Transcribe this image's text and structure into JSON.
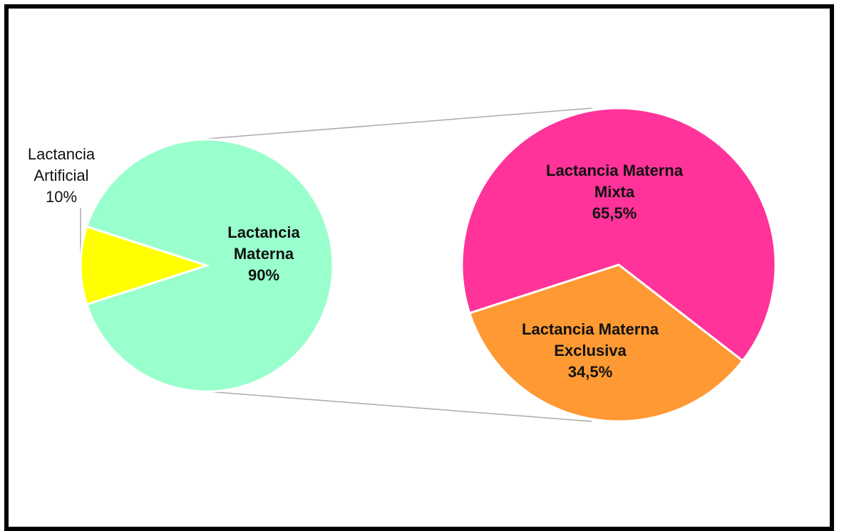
{
  "chart_data": [
    {
      "type": "pie",
      "categories": [
        "Lactancia Materna",
        "Lactancia Artificial"
      ],
      "values": [
        90,
        10
      ],
      "value_labels": [
        "90%",
        "10%"
      ],
      "colors": [
        "#99ffcc",
        "#ffff00"
      ]
    },
    {
      "type": "pie",
      "categories": [
        "Lactancia Materna Mixta",
        "Lactancia Materna Exclusiva"
      ],
      "values": [
        65.5,
        34.5
      ],
      "value_labels": [
        "65,5%",
        "34,5%"
      ],
      "colors": [
        "#ff3399",
        "#ff9933"
      ]
    }
  ]
}
